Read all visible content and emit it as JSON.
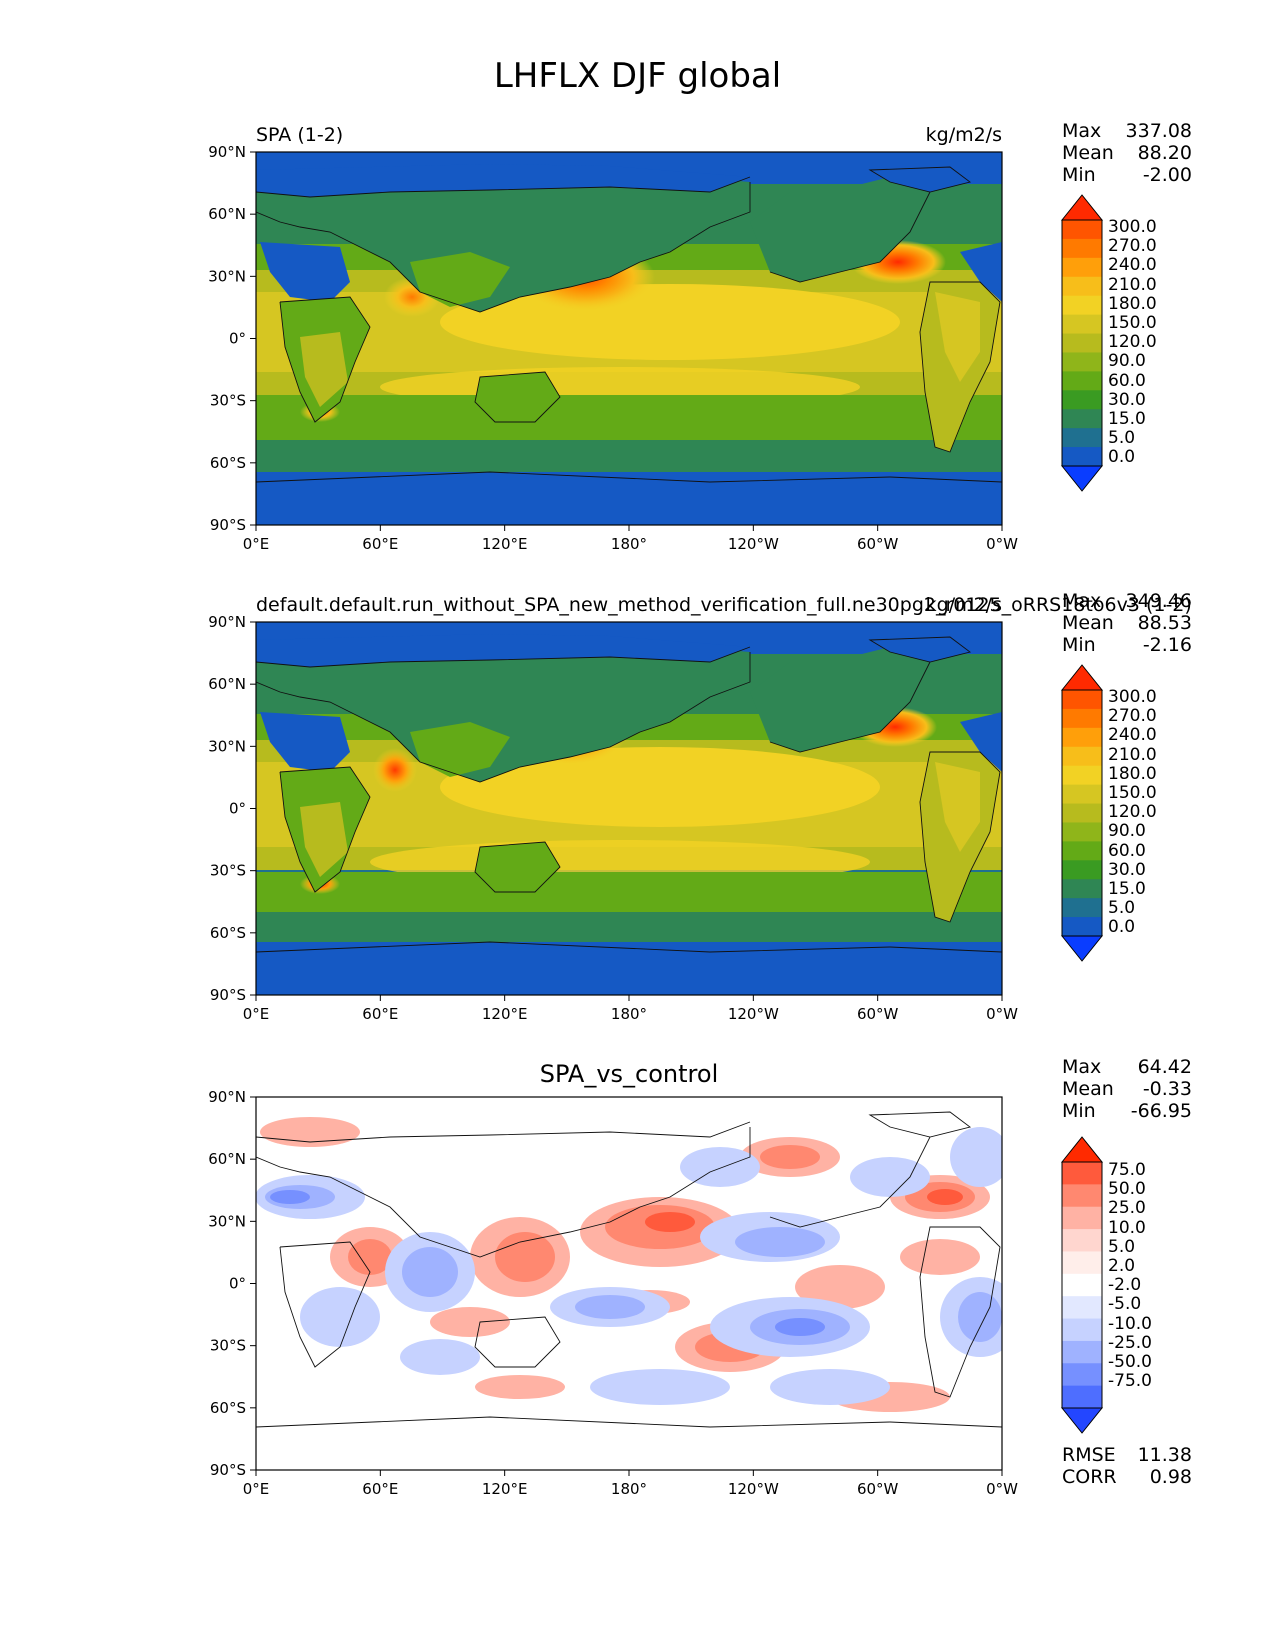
{
  "figure_title": "LHFLX DJF global",
  "axis": {
    "lat_labels": [
      "90°N",
      "60°N",
      "30°N",
      "0°",
      "30°S",
      "60°S",
      "90°S"
    ],
    "lon_labels": [
      "0°E",
      "60°E",
      "120°E",
      "180°",
      "120°W",
      "60°W",
      "0°W"
    ]
  },
  "panels": [
    {
      "left_title": "SPA (1-2)",
      "right_title": "kg/m2/s",
      "center_title": "",
      "stats": {
        "max_label": "Max",
        "max": "337.08",
        "mean_label": "Mean",
        "mean": "88.20",
        "min_label": "Min",
        "min": "-2.00"
      },
      "colorbar_labels": [
        "300.0",
        "270.0",
        "240.0",
        "210.0",
        "180.0",
        "150.0",
        "120.0",
        "90.0",
        "60.0",
        "30.0",
        "15.0",
        "5.0",
        "0.0"
      ],
      "colorbar_colors": [
        "#ff2a00",
        "#ff5500",
        "#ff7a00",
        "#ff9f0a",
        "#f7be1a",
        "#f2d224",
        "#d6c622",
        "#b7bb1e",
        "#8fb51a",
        "#63aa17",
        "#3a9b22",
        "#2f8654",
        "#1f7090",
        "#1559c4",
        "#0a3dff"
      ]
    },
    {
      "left_title": "default.default.run_without_SPA_new_method_verification_full.ne30pg2_r0125_oRRS18to6v3 (1-2)",
      "right_title": "kg/m2/s",
      "center_title": "",
      "stats": {
        "max_label": "Max",
        "max": "349.46",
        "mean_label": "Mean",
        "mean": "88.53",
        "min_label": "Min",
        "min": "-2.16"
      },
      "colorbar_labels": [
        "300.0",
        "270.0",
        "240.0",
        "210.0",
        "180.0",
        "150.0",
        "120.0",
        "90.0",
        "60.0",
        "30.0",
        "15.0",
        "5.0",
        "0.0"
      ],
      "colorbar_colors": [
        "#ff2a00",
        "#ff5500",
        "#ff7a00",
        "#ff9f0a",
        "#f7be1a",
        "#f2d224",
        "#d6c622",
        "#b7bb1e",
        "#8fb51a",
        "#63aa17",
        "#3a9b22",
        "#2f8654",
        "#1f7090",
        "#1559c4",
        "#0a3dff"
      ]
    },
    {
      "left_title": "",
      "right_title": "",
      "center_title": "SPA_vs_control",
      "stats": {
        "max_label": "Max",
        "max": "64.42",
        "mean_label": "Mean",
        "mean": "-0.33",
        "min_label": "Min",
        "min": "-66.95"
      },
      "colorbar_labels": [
        "75.0",
        "50.0",
        "25.0",
        "10.0",
        "5.0",
        "2.0",
        "-2.0",
        "-5.0",
        "-10.0",
        "-25.0",
        "-50.0",
        "-75.0"
      ],
      "colorbar_colors": [
        "#ff2a00",
        "#ff5a3c",
        "#ff8870",
        "#ffb2a4",
        "#ffd6cf",
        "#ffeeea",
        "#ffffff",
        "#e2e8ff",
        "#c6d2ff",
        "#9fb2ff",
        "#7690ff",
        "#4e6eff",
        "#2346ff"
      ],
      "bottom_stats": {
        "rmse_label": "RMSE",
        "rmse": "11.38",
        "corr_label": "CORR",
        "corr": "0.98"
      }
    }
  ]
}
